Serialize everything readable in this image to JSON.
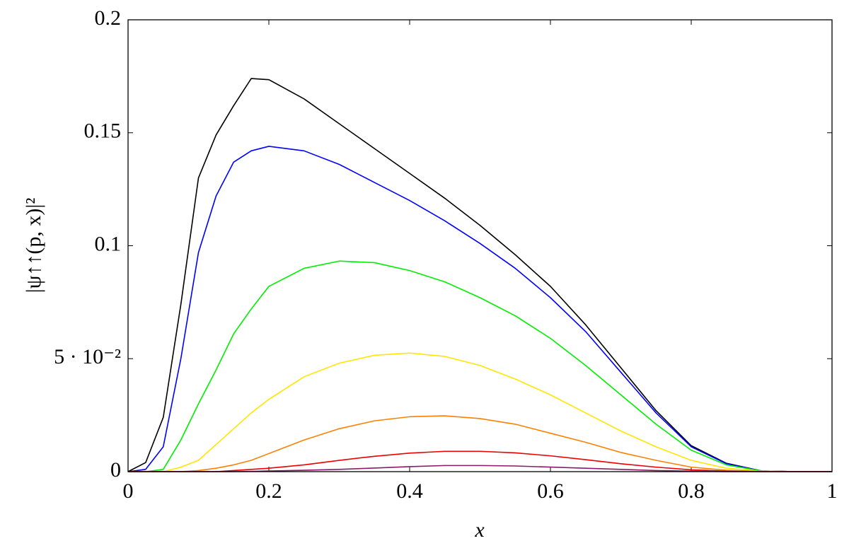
{
  "chart_data": {
    "type": "line",
    "x_label": "x",
    "y_label": "|ψ↑↑(p, x)|²",
    "x": [
      0,
      0.025,
      0.05,
      0.075,
      0.1,
      0.125,
      0.15,
      0.175,
      0.2,
      0.25,
      0.3,
      0.35,
      0.4,
      0.45,
      0.5,
      0.55,
      0.6,
      0.65,
      0.7,
      0.75,
      0.8,
      0.85,
      0.9,
      0.95,
      1
    ],
    "series": [
      {
        "color": "#000000",
        "values": [
          0,
          0.004,
          0.024,
          0.074,
          0.13,
          0.149,
          0.162,
          0.174,
          0.1735,
          0.165,
          0.154,
          0.143,
          0.132,
          0.121,
          0.109,
          0.096,
          0.082,
          0.065,
          0.046,
          0.027,
          0.0115,
          0.0037,
          0.0003,
          0,
          0
        ]
      },
      {
        "color": "#0000ff",
        "values": [
          0,
          0.001,
          0.011,
          0.05,
          0.097,
          0.122,
          0.137,
          0.142,
          0.144,
          0.142,
          0.136,
          0.128,
          0.12,
          0.111,
          0.101,
          0.09,
          0.077,
          0.062,
          0.044,
          0.026,
          0.011,
          0.0035,
          0.0003,
          0,
          0
        ]
      },
      {
        "color": "#00ee00",
        "values": [
          0,
          0,
          0.001,
          0.014,
          0.03,
          0.045,
          0.061,
          0.072,
          0.082,
          0.09,
          0.0932,
          0.0925,
          0.089,
          0.084,
          0.077,
          0.069,
          0.059,
          0.047,
          0.034,
          0.021,
          0.0095,
          0.003,
          0.0003,
          0,
          0
        ]
      },
      {
        "color": "#ffe600",
        "values": [
          0,
          0,
          0,
          0.002,
          0.005,
          0.012,
          0.019,
          0.026,
          0.032,
          0.042,
          0.048,
          0.0515,
          0.0525,
          0.051,
          0.047,
          0.041,
          0.034,
          0.026,
          0.018,
          0.011,
          0.005,
          0.0015,
          0.0002,
          0,
          0
        ]
      },
      {
        "color": "#ff8000",
        "values": [
          0,
          0,
          0,
          0,
          0.0005,
          0.0015,
          0.003,
          0.005,
          0.008,
          0.014,
          0.019,
          0.0225,
          0.0243,
          0.0247,
          0.0235,
          0.021,
          0.017,
          0.013,
          0.0085,
          0.005,
          0.002,
          0.0006,
          0.0001,
          0,
          0
        ]
      },
      {
        "color": "#ee0000",
        "values": [
          0,
          0,
          0,
          0,
          0,
          0,
          0.0005,
          0.001,
          0.0015,
          0.003,
          0.005,
          0.0068,
          0.0082,
          0.009,
          0.009,
          0.0083,
          0.007,
          0.0053,
          0.0035,
          0.002,
          0.0008,
          0.0002,
          0,
          0,
          0
        ]
      },
      {
        "color": "#8b1a6b",
        "values": [
          0,
          0,
          0,
          0,
          0,
          0,
          0,
          0.0001,
          0.0003,
          0.0006,
          0.001,
          0.0016,
          0.0022,
          0.0027,
          0.0027,
          0.0025,
          0.002,
          0.0015,
          0.001,
          0.0005,
          0.0002,
          0,
          0,
          0,
          0
        ]
      }
    ],
    "xlim": [
      0,
      1
    ],
    "ylim": [
      0,
      0.2
    ],
    "xticks": [
      0,
      0.2,
      0.4,
      0.6,
      0.8,
      1
    ],
    "yticks": [
      0,
      {
        "value": 0.05,
        "label": "5 · 10⁻²"
      },
      0.1,
      0.15,
      0.2
    ]
  }
}
